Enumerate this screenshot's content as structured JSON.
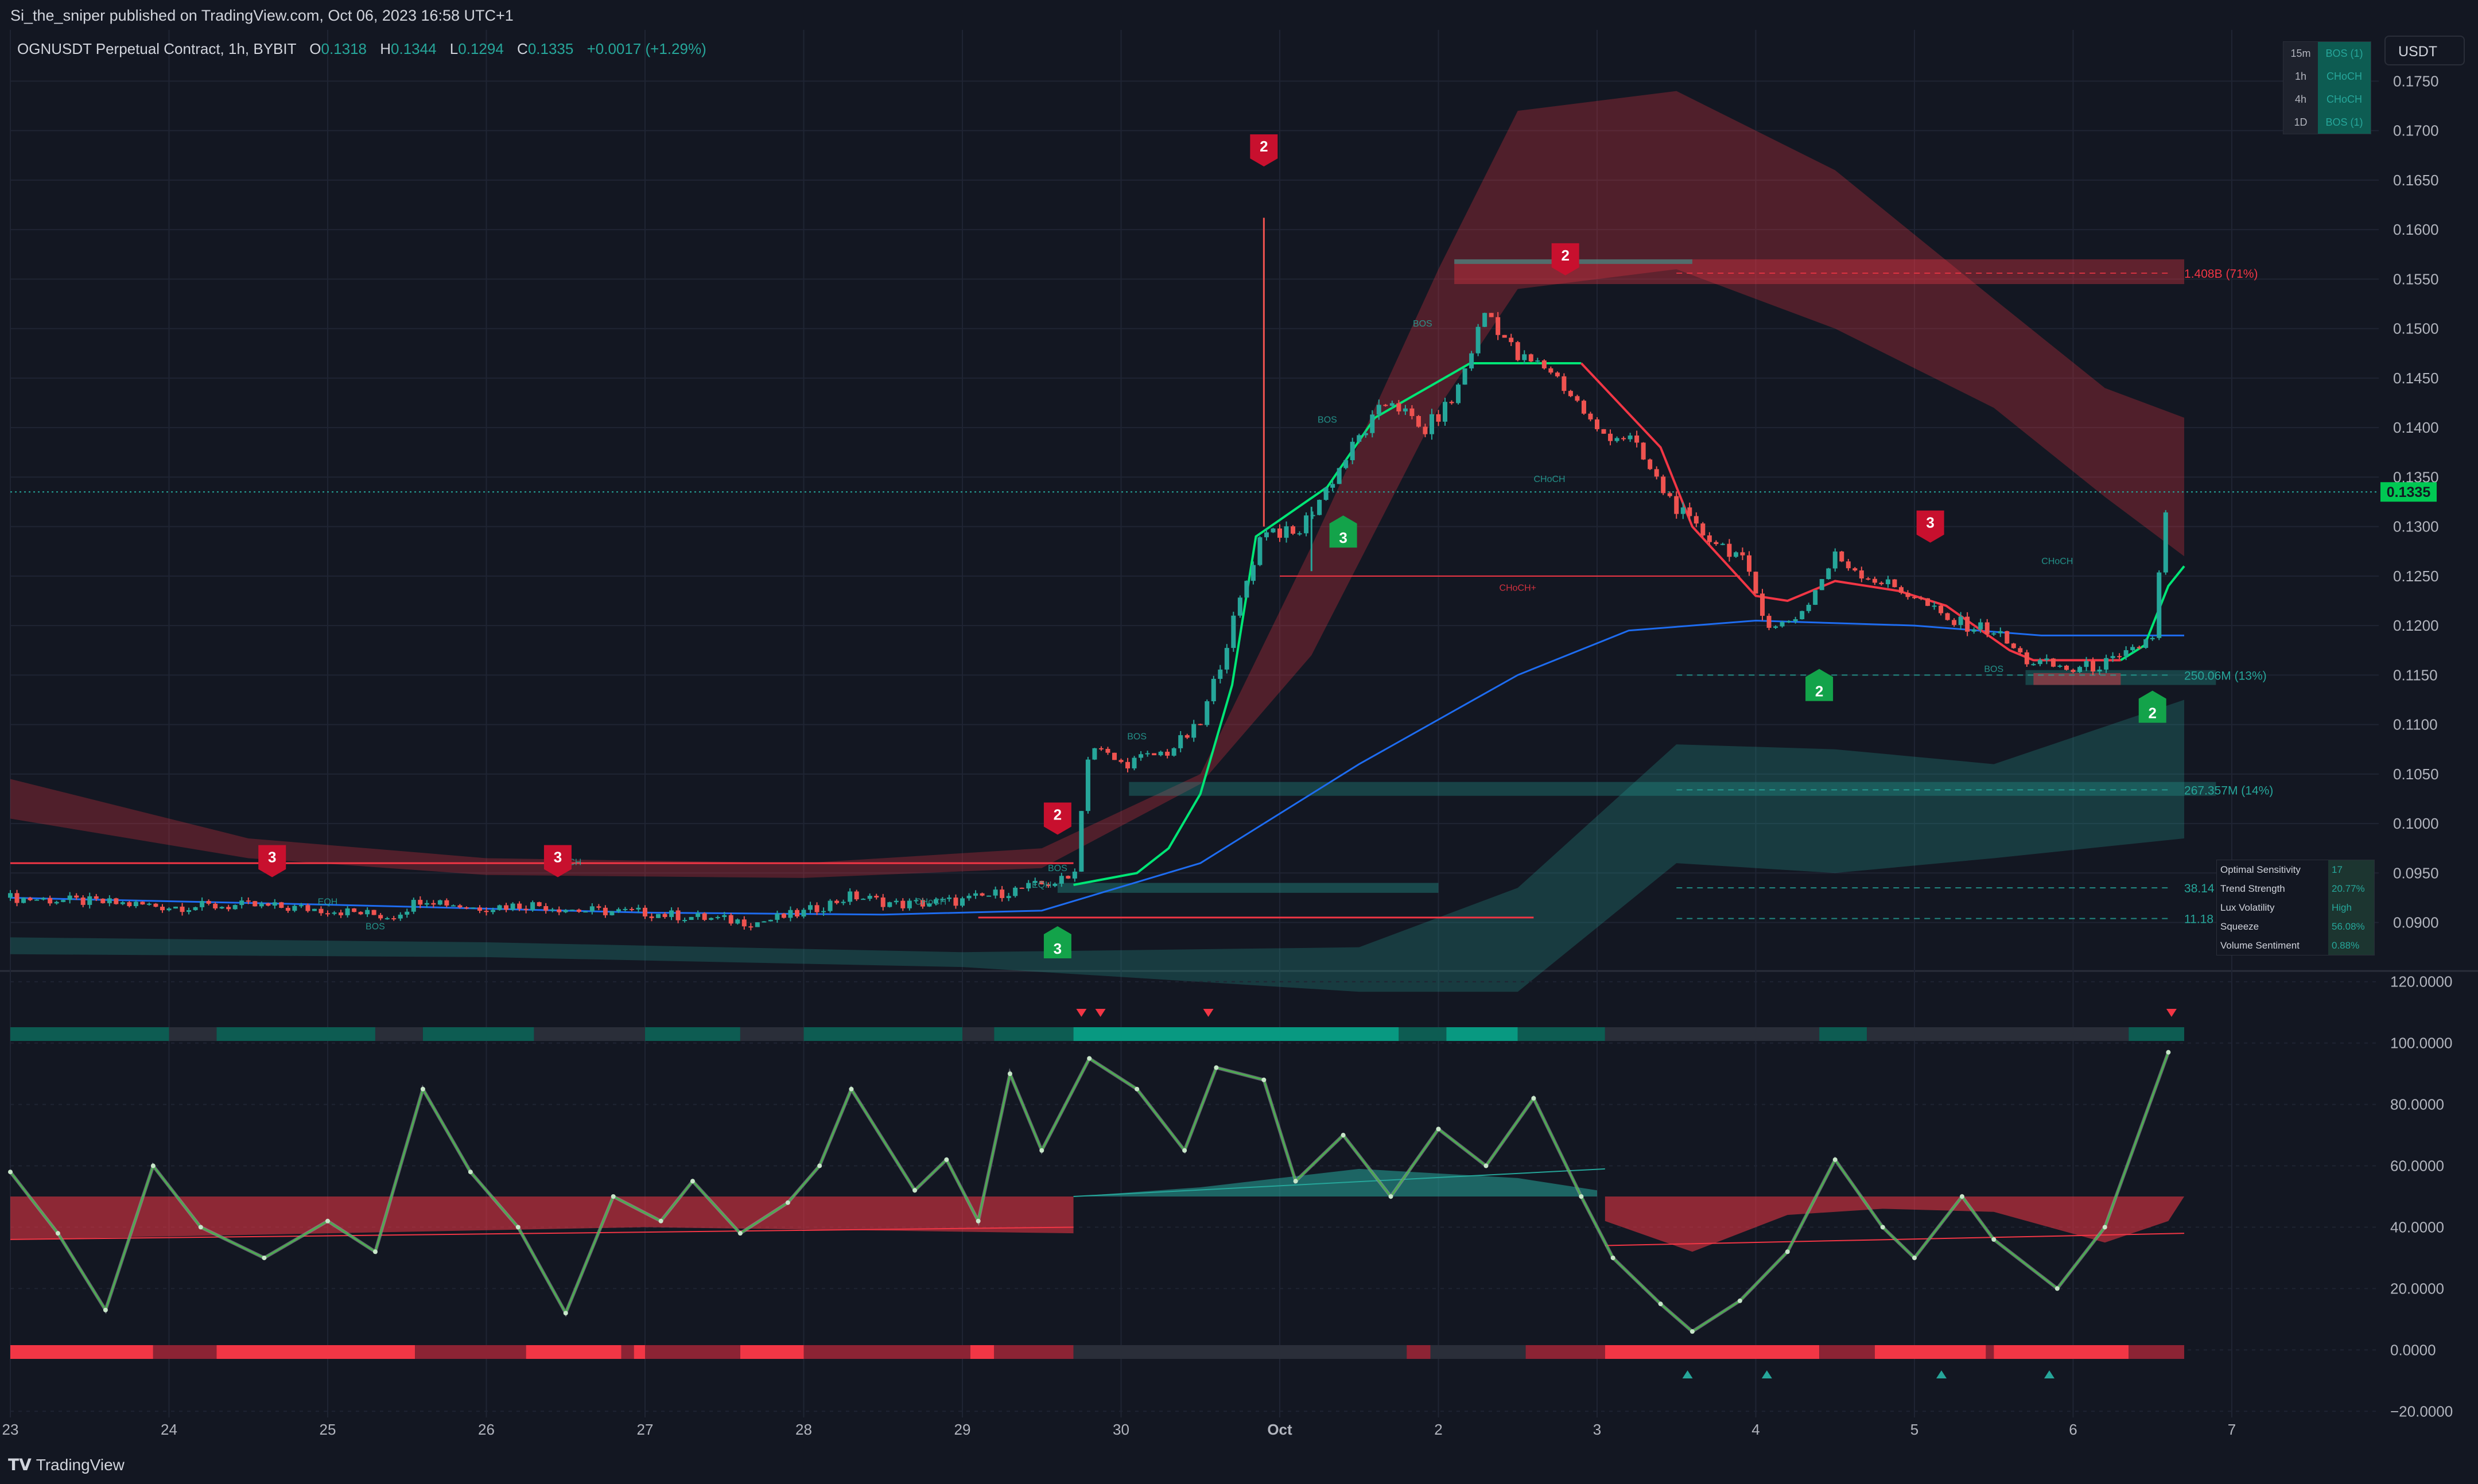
{
  "header": {
    "publish": "Si_the_sniper published on TradingView.com, Oct 06, 2023 16:58 UTC+1",
    "symbol": "OGNUSDT Perpetual Contract, 1h, BYBIT",
    "o_label": "O",
    "o": "0.1318",
    "h_label": "H",
    "h": "0.1344",
    "l_label": "L",
    "l": "0.1294",
    "c_label": "C",
    "c": "0.1335",
    "change": "+0.0017 (+1.29%)"
  },
  "currency": "USDT",
  "brand": "TradingView",
  "mtf_table": [
    {
      "tf": "15m",
      "state": "BOS (1)"
    },
    {
      "tf": "1h",
      "state": "CHoCH"
    },
    {
      "tf": "4h",
      "state": "CHoCH"
    },
    {
      "tf": "1D",
      "state": "BOS (1)"
    }
  ],
  "dashboard": [
    {
      "key": "Optimal Sensitivity",
      "value": "17"
    },
    {
      "key": "Trend Strength",
      "value": "20.77%"
    },
    {
      "key": "Lux Volatility",
      "value": "High"
    },
    {
      "key": "Squeeze",
      "value": "56.08%"
    },
    {
      "key": "Volume Sentiment",
      "value": "0.88%"
    }
  ],
  "colors": {
    "background": "#131722",
    "bull": "#26a69a",
    "bull_bright": "#00e676",
    "bear": "#f23645",
    "trend_line": "#1e6cf0",
    "grid": "#1f2433"
  },
  "chart_data": [
    {
      "type": "candlestick",
      "symbol": "OGNUSDT",
      "timeframe": "1h",
      "x_ticks": [
        "23",
        "24",
        "25",
        "26",
        "27",
        "28",
        "29",
        "30",
        "Oct",
        "2",
        "3",
        "4",
        "5",
        "6",
        "7"
      ],
      "y_ticks": [
        "0.0900",
        "0.0950",
        "0.1000",
        "0.1050",
        "0.1100",
        "0.1150",
        "0.1200",
        "0.1250",
        "0.1300",
        "0.1350",
        "0.1400",
        "0.1450",
        "0.1500",
        "0.1550",
        "0.1600",
        "0.1650",
        "0.1700",
        "0.1750"
      ],
      "ylim": [
        0.0858,
        0.1803
      ],
      "last_price": "0.1335",
      "close_path": [
        [
          23.0,
          0.0925
        ],
        [
          23.5,
          0.0921
        ],
        [
          24.0,
          0.0916
        ],
        [
          24.5,
          0.0917
        ],
        [
          25.0,
          0.0913
        ],
        [
          25.4,
          0.0906
        ],
        [
          25.6,
          0.0925
        ],
        [
          25.9,
          0.0915
        ],
        [
          26.3,
          0.0918
        ],
        [
          26.6,
          0.0912
        ],
        [
          27.0,
          0.091
        ],
        [
          27.4,
          0.0904
        ],
        [
          27.7,
          0.09
        ],
        [
          28.0,
          0.091
        ],
        [
          28.3,
          0.0927
        ],
        [
          28.6,
          0.0918
        ],
        [
          29.0,
          0.0922
        ],
        [
          29.4,
          0.0935
        ],
        [
          29.7,
          0.0945
        ],
        [
          29.8,
          0.108
        ],
        [
          30.0,
          0.106
        ],
        [
          30.3,
          0.1073
        ],
        [
          30.5,
          0.11
        ],
        [
          30.7,
          0.12
        ],
        [
          30.9,
          0.13
        ],
        [
          31.1,
          0.129
        ],
        [
          31.3,
          0.134
        ],
        [
          31.5,
          0.139
        ],
        [
          31.7,
          0.143
        ],
        [
          31.9,
          0.1395
        ],
        [
          32.1,
          0.143
        ],
        [
          32.3,
          0.152
        ],
        [
          32.5,
          0.147
        ],
        [
          32.7,
          0.146
        ],
        [
          32.9,
          0.142
        ],
        [
          33.0,
          0.1395
        ],
        [
          33.2,
          0.139
        ],
        [
          33.4,
          0.134
        ],
        [
          33.6,
          0.13
        ],
        [
          33.9,
          0.127
        ],
        [
          34.1,
          0.1195
        ],
        [
          34.3,
          0.1215
        ],
        [
          34.5,
          0.127
        ],
        [
          34.7,
          0.125
        ],
        [
          35.0,
          0.123
        ],
        [
          35.2,
          0.1205
        ],
        [
          35.5,
          0.1195
        ],
        [
          35.7,
          0.1165
        ],
        [
          36.0,
          0.1155
        ],
        [
          36.3,
          0.1165
        ],
        [
          36.5,
          0.119
        ],
        [
          36.6,
          0.1335
        ]
      ],
      "wick_high": {
        "x": 30.9,
        "y": 0.1612
      },
      "wick_low": {
        "x": 31.2,
        "y": 0.1255
      },
      "signals": [
        {
          "label": "3",
          "kind": "sell",
          "x": 24.65,
          "y": 0.0962
        },
        {
          "label": "3",
          "kind": "sell",
          "x": 26.45,
          "y": 0.0962
        },
        {
          "label": "2",
          "kind": "sell",
          "x": 29.6,
          "y": 0.1005
        },
        {
          "label": "2",
          "kind": "sell",
          "x": 30.9,
          "y": 0.168
        },
        {
          "label": "2",
          "kind": "sell",
          "x": 32.8,
          "y": 0.157
        },
        {
          "label": "3",
          "kind": "sell",
          "x": 35.1,
          "y": 0.13
        },
        {
          "label": "3",
          "kind": "buy",
          "x": 29.6,
          "y": 0.088
        },
        {
          "label": "3",
          "kind": "buy",
          "x": 31.4,
          "y": 0.1295
        },
        {
          "label": "2",
          "kind": "buy",
          "x": 34.4,
          "y": 0.114
        },
        {
          "label": "2",
          "kind": "buy",
          "x": 36.5,
          "y": 0.1118
        }
      ],
      "annotations": [
        {
          "text": "CHoCH",
          "x": 26.5,
          "y": 0.0958
        },
        {
          "text": "CHoCH",
          "x": 28.8,
          "y": 0.0918
        },
        {
          "text": "EQH",
          "x": 25.0,
          "y": 0.0918
        },
        {
          "text": "EQH",
          "x": 29.5,
          "y": 0.0935
        },
        {
          "text": "BOS",
          "x": 25.3,
          "y": 0.0893
        },
        {
          "text": "BOS",
          "x": 29.6,
          "y": 0.0952
        },
        {
          "text": "BOS",
          "x": 30.1,
          "y": 0.1085
        },
        {
          "text": "BOS",
          "x": 31.3,
          "y": 0.1405
        },
        {
          "text": "BOS",
          "x": 31.9,
          "y": 0.1502
        },
        {
          "text": "CHoCH",
          "x": 32.7,
          "y": 0.1345
        },
        {
          "text": "CHoCH+",
          "x": 32.5,
          "y": 0.1235
        },
        {
          "text": "CHoCH",
          "x": 35.9,
          "y": 0.1262
        },
        {
          "text": "BOS",
          "x": 35.5,
          "y": 0.1153
        }
      ],
      "levels": [
        {
          "text": "1.408B (71%)",
          "y": 0.1556,
          "color": "#f23645"
        },
        {
          "text": "250.06M (13%)",
          "y": 0.115,
          "color": "#26a69a"
        },
        {
          "text": "267.357M (14%)",
          "y": 0.1034,
          "color": "#26a69a"
        },
        {
          "text": "38.14",
          "y": 0.0935,
          "color": "#26a69a"
        },
        {
          "text": "11.18",
          "y": 0.0904,
          "color": "#26a69a"
        }
      ]
    },
    {
      "type": "line",
      "panel": "oscillator",
      "y_ticks": [
        "120.0000",
        "100.0000",
        "80.0000",
        "60.0000",
        "40.0000",
        "20.0000",
        "0.0000",
        "−20.0000"
      ],
      "ylim": [
        -22,
        122
      ],
      "series": [
        {
          "values": [
            [
              23.0,
              58
            ],
            [
              23.3,
              38
            ],
            [
              23.6,
              13
            ],
            [
              23.9,
              60
            ],
            [
              24.2,
              40
            ],
            [
              24.6,
              30
            ],
            [
              25.0,
              42
            ],
            [
              25.3,
              32
            ],
            [
              25.6,
              85
            ],
            [
              25.9,
              58
            ],
            [
              26.2,
              40
            ],
            [
              26.5,
              12
            ],
            [
              26.8,
              50
            ],
            [
              27.1,
              42
            ],
            [
              27.3,
              55
            ],
            [
              27.6,
              38
            ],
            [
              27.9,
              48
            ],
            [
              28.1,
              60
            ],
            [
              28.3,
              85
            ],
            [
              28.7,
              52
            ],
            [
              28.9,
              62
            ],
            [
              29.1,
              42
            ],
            [
              29.3,
              90
            ],
            [
              29.5,
              65
            ],
            [
              29.8,
              95
            ],
            [
              30.1,
              85
            ],
            [
              30.4,
              65
            ],
            [
              30.6,
              92
            ],
            [
              30.9,
              88
            ],
            [
              31.1,
              55
            ],
            [
              31.4,
              70
            ],
            [
              31.7,
              50
            ],
            [
              32.0,
              72
            ],
            [
              32.3,
              60
            ],
            [
              32.6,
              82
            ],
            [
              32.9,
              50
            ],
            [
              33.1,
              30
            ],
            [
              33.4,
              15
            ],
            [
              33.6,
              6
            ],
            [
              33.9,
              16
            ],
            [
              34.2,
              32
            ],
            [
              34.5,
              62
            ],
            [
              34.8,
              40
            ],
            [
              35.0,
              30
            ],
            [
              35.3,
              50
            ],
            [
              35.5,
              36
            ],
            [
              35.9,
              20
            ],
            [
              36.2,
              40
            ],
            [
              36.6,
              97
            ]
          ]
        }
      ],
      "band_top": 50,
      "markers": [
        {
          "kind": "sell",
          "x": 29.75
        },
        {
          "kind": "sell",
          "x": 29.87
        },
        {
          "kind": "sell",
          "x": 30.55
        },
        {
          "kind": "sell",
          "x": 36.62
        },
        {
          "kind": "buy",
          "x": 33.57
        },
        {
          "kind": "buy",
          "x": 34.07
        },
        {
          "kind": "buy",
          "x": 35.17
        },
        {
          "kind": "buy",
          "x": 35.85
        }
      ]
    }
  ]
}
